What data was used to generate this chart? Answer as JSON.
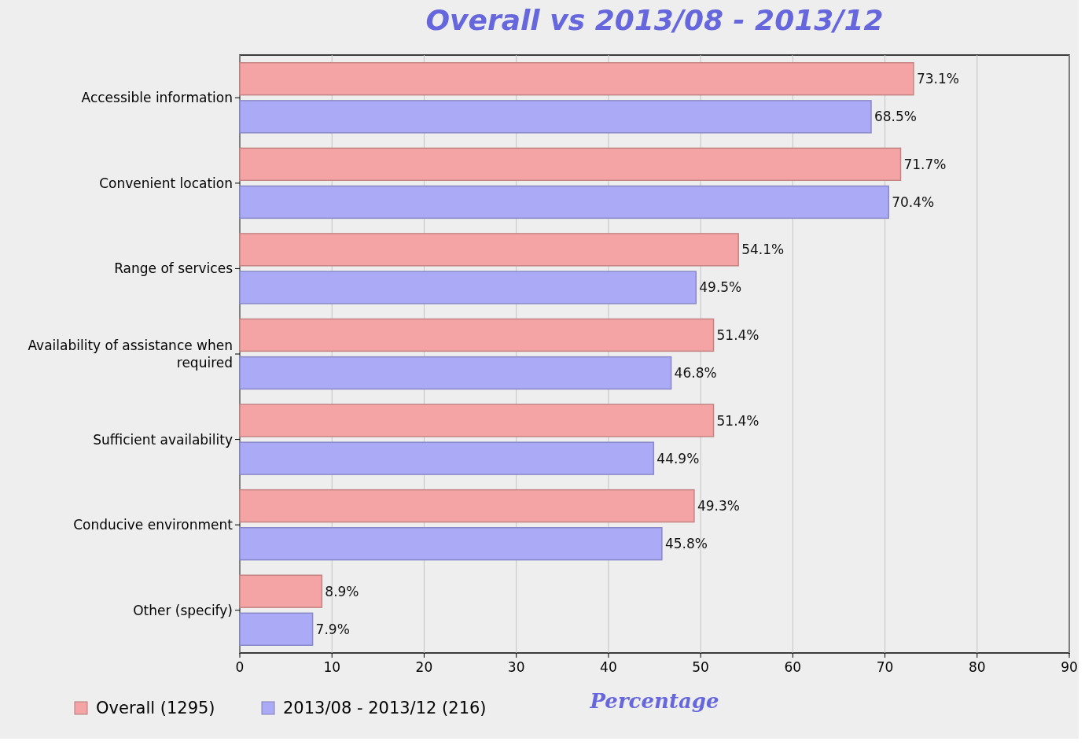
{
  "chart_data": {
    "type": "bar",
    "orientation": "horizontal",
    "title": "Overall vs 2013/08 - 2013/12",
    "xlabel": "Percentage",
    "categories": [
      "Accessible information",
      "Convenient location",
      "Range of services",
      "Availability of assistance when required",
      "Sufficient availability",
      "Conducive environment",
      "Other (specify)"
    ],
    "series": [
      {
        "name": "Overall (1295)",
        "color": "#f4a4a4",
        "values": [
          73.1,
          71.7,
          54.1,
          51.4,
          51.4,
          49.3,
          8.9
        ],
        "value_labels": [
          "73.1%",
          "71.7%",
          "54.1%",
          "51.4%",
          "51.4%",
          "49.3%",
          "8.9%"
        ]
      },
      {
        "name": "2013/08 - 2013/12 (216)",
        "color": "#aaaaf6",
        "values": [
          68.5,
          70.4,
          49.5,
          46.8,
          44.9,
          45.8,
          7.9
        ],
        "value_labels": [
          "68.5%",
          "70.4%",
          "49.5%",
          "46.8%",
          "44.9%",
          "45.8%",
          "7.9%"
        ]
      }
    ],
    "xlim": [
      0,
      90
    ],
    "xticks": [
      0,
      10,
      20,
      30,
      40,
      50,
      60,
      70,
      80,
      90
    ],
    "grid": "x",
    "legend": "bottom left"
  }
}
